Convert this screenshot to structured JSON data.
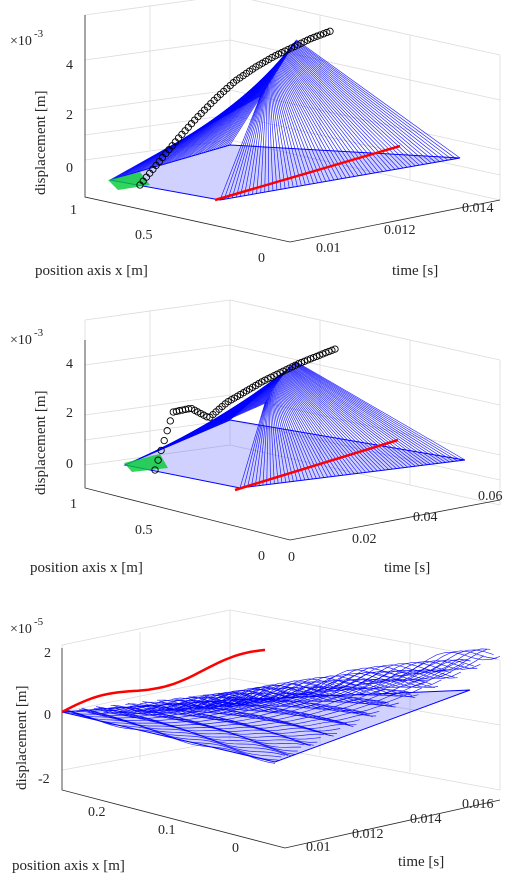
{
  "chart_data": [
    {
      "type": "surface-3d",
      "zlabel": "displacement [m]",
      "xlabel": "position axis x [m]",
      "ylabel": "time [s]",
      "z_exponent_base": "×10",
      "z_exponent": "-3",
      "z_ticks": [
        "0",
        "2",
        "4"
      ],
      "z_lim": [
        -0.001,
        0.0043
      ],
      "x_ticks": [
        "1",
        "0.5",
        "0"
      ],
      "x_lim": [
        1,
        0
      ],
      "time_ticks": [
        "0.01",
        "0.012",
        "0.014"
      ],
      "time_lim": [
        0.0095,
        0.0145
      ],
      "series": [
        {
          "kind": "wave-mesh",
          "color": "#0000ff"
        },
        {
          "kind": "marker-circles",
          "color": "#000000",
          "x_positions": [
            0.97,
            0.9,
            0.8,
            0.7,
            0.6,
            0.5,
            0.4,
            0.3,
            0.2,
            0.1,
            0.05
          ],
          "values": [
            0.0,
            0.0008,
            0.0016,
            0.0023,
            0.0029,
            0.0034,
            0.0037,
            0.0039,
            0.004,
            0.0041,
            0.0041
          ]
        },
        {
          "kind": "edge-line",
          "color": "#ff0000"
        },
        {
          "kind": "patch",
          "color": "#00cc33"
        }
      ]
    },
    {
      "type": "surface-3d",
      "zlabel": "displacement [m]",
      "xlabel": "position axis x [m]",
      "ylabel": "time [s]",
      "z_exponent_base": "×10",
      "z_exponent": "-3",
      "z_ticks": [
        "0",
        "2",
        "4"
      ],
      "z_lim": [
        -0.001,
        0.0043
      ],
      "x_ticks": [
        "1",
        "0.5",
        "0"
      ],
      "x_lim": [
        1,
        0
      ],
      "time_ticks": [
        "0.02",
        "0.04",
        "0.06"
      ],
      "time_lim": [
        0.005,
        0.065
      ],
      "series": [
        {
          "kind": "wave-mesh",
          "color": "#0000ff"
        },
        {
          "kind": "marker-circles",
          "color": "#000000",
          "x_positions": [
            0.92,
            0.85,
            0.78,
            0.7,
            0.6,
            0.5,
            0.4,
            0.3,
            0.2,
            0.1,
            0.05
          ],
          "values": [
            0.0,
            0.0031,
            0.003,
            0.0021,
            0.0027,
            0.003,
            0.0033,
            0.0035,
            0.0037,
            0.0038,
            0.0039
          ]
        },
        {
          "kind": "edge-line",
          "color": "#ff0000"
        },
        {
          "kind": "patch",
          "color": "#00cc33"
        }
      ]
    },
    {
      "type": "surface-3d",
      "zlabel": "displacement [m]",
      "xlabel": "position axis x [m]",
      "ylabel": "time [s]",
      "z_exponent_base": "×10",
      "z_exponent": "-5",
      "z_ticks": [
        "-2",
        "0",
        "2"
      ],
      "z_lim": [
        -2e-05,
        2e-05
      ],
      "x_ticks": [
        "0.2",
        "0.1",
        "0"
      ],
      "x_lim": [
        0.25,
        0
      ],
      "time_ticks": [
        "0.01",
        "0.012",
        "0.014",
        "0.016"
      ],
      "time_lim": [
        0.009,
        0.017
      ],
      "series": [
        {
          "kind": "wave-mesh",
          "color": "#0000ff"
        },
        {
          "kind": "edge-line",
          "color": "#ff0000"
        }
      ]
    }
  ]
}
